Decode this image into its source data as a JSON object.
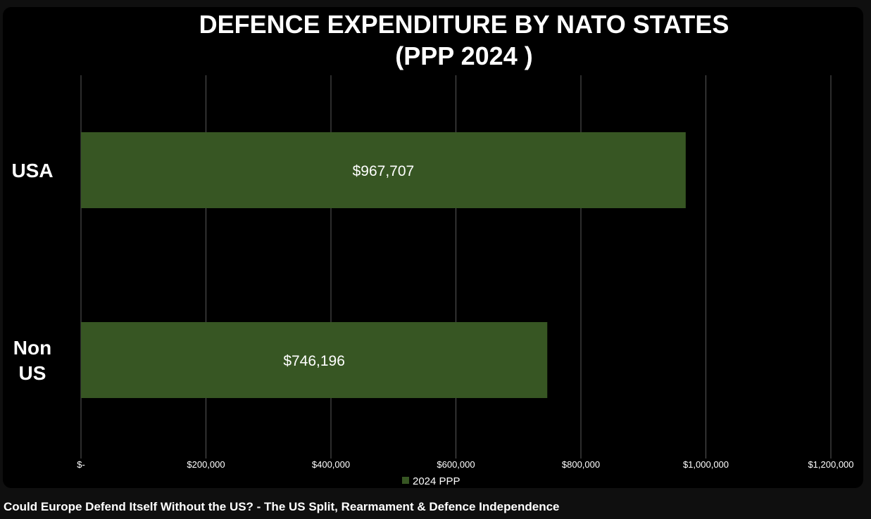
{
  "video": {
    "title": "Could Europe Defend Itself Without the US? - The US Split, Rearmament & Defence Independence"
  },
  "colors": {
    "background": "#000000",
    "bar": "#375623",
    "gridline": "#595959",
    "text": "#ffffff"
  },
  "chart_data": {
    "type": "bar",
    "orientation": "horizontal",
    "title": "DEFENCE EXPENDITURE BY NATO STATES",
    "subtitle": "(PPP 2024 )",
    "categories": [
      "USA",
      "Non US"
    ],
    "series": [
      {
        "name": "2024 PPP",
        "values": [
          967707,
          746196
        ],
        "data_labels": [
          "$967,707",
          "$746,196"
        ]
      }
    ],
    "xlim": [
      0,
      1200000
    ],
    "x_ticks": [
      0,
      200000,
      400000,
      600000,
      800000,
      1000000,
      1200000
    ],
    "x_tick_labels": [
      "$-",
      "$200,000",
      "$400,000",
      "$600,000",
      "$800,000",
      "$1,000,000",
      "$1,200,000"
    ],
    "grid": "vertical",
    "legend": "bottom"
  }
}
